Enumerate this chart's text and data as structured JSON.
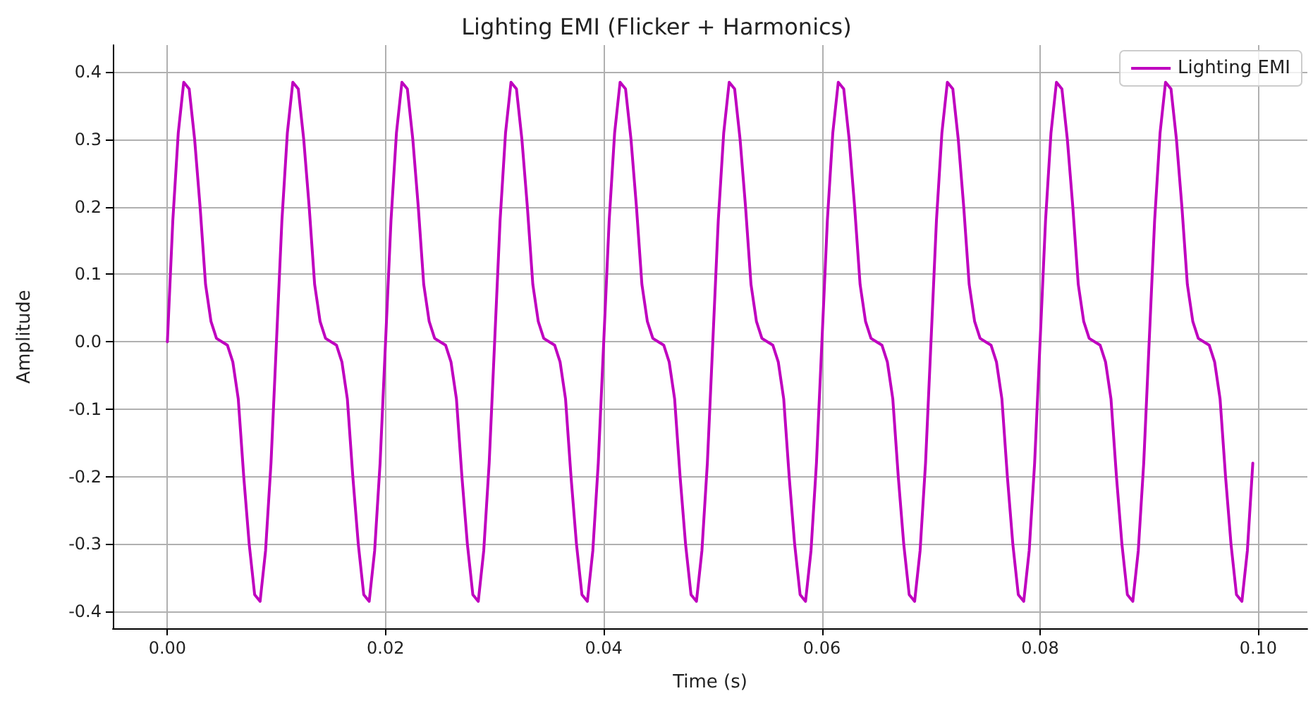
{
  "chart_data": {
    "type": "line",
    "title": "Lighting EMI (Flicker + Harmonics)",
    "xlabel": "Time (s)",
    "ylabel": "Amplitude",
    "x": [
      0,
      0.0005,
      0.001,
      0.0015,
      0.002,
      0.0025,
      0.003,
      0.0035,
      0.004,
      0.0045,
      0.005,
      0.0055,
      0.006,
      0.0065,
      0.007,
      0.0075,
      0.008,
      0.0085,
      0.009,
      0.0095,
      0.01,
      0.0105,
      0.011,
      0.0115,
      0.012,
      0.0125,
      0.013,
      0.0135,
      0.014,
      0.0145,
      0.015,
      0.0155,
      0.016,
      0.0165,
      0.017,
      0.0175,
      0.018,
      0.0185,
      0.019,
      0.0195,
      0.02,
      0.0205,
      0.021,
      0.0215,
      0.022,
      0.0225,
      0.023,
      0.0235,
      0.024,
      0.0245,
      0.025,
      0.0255,
      0.026,
      0.0265,
      0.027,
      0.0275,
      0.028,
      0.0285,
      0.029,
      0.0295,
      0.03,
      0.0305,
      0.031,
      0.0315,
      0.032,
      0.0325,
      0.033,
      0.0335,
      0.034,
      0.0345,
      0.035,
      0.0355,
      0.036,
      0.0365,
      0.037,
      0.0375,
      0.038,
      0.0385,
      0.039,
      0.0395,
      0.04,
      0.0405,
      0.041,
      0.0415,
      0.042,
      0.0425,
      0.043,
      0.0435,
      0.044,
      0.0445,
      0.045,
      0.0455,
      0.046,
      0.0465,
      0.047,
      0.0475,
      0.048,
      0.0485,
      0.049,
      0.0495,
      0.05,
      0.0505,
      0.051,
      0.0515,
      0.052,
      0.0525,
      0.053,
      0.0535,
      0.054,
      0.0545,
      0.055,
      0.0555,
      0.056,
      0.0565,
      0.057,
      0.0575,
      0.058,
      0.0585,
      0.059,
      0.0595,
      0.06,
      0.0605,
      0.061,
      0.0615,
      0.062,
      0.0625,
      0.063,
      0.0635,
      0.064,
      0.0645,
      0.065,
      0.0655,
      0.066,
      0.0665,
      0.067,
      0.0675,
      0.068,
      0.0685,
      0.069,
      0.0695,
      0.07,
      0.0705,
      0.071,
      0.0715,
      0.072,
      0.0725,
      0.073,
      0.0735,
      0.074,
      0.0745,
      0.075,
      0.0755,
      0.076,
      0.0765,
      0.077,
      0.0775,
      0.078,
      0.0785,
      0.079,
      0.0795,
      0.08,
      0.0805,
      0.081,
      0.0815,
      0.082,
      0.0825,
      0.083,
      0.0835,
      0.084,
      0.0845,
      0.085,
      0.0855,
      0.086,
      0.0865,
      0.087,
      0.0875,
      0.088,
      0.0885,
      0.089,
      0.0895,
      0.09,
      0.0905,
      0.091,
      0.0915,
      0.092,
      0.0925,
      0.093,
      0.0935,
      0.094,
      0.0945,
      0.095,
      0.0955,
      0.096,
      0.0965,
      0.097,
      0.0975,
      0.098,
      0.0985,
      0.099,
      0.0995
    ],
    "series": [
      {
        "name": "Lighting EMI",
        "color": "#bf00bf",
        "values": [
          0,
          0.18,
          0.31,
          0.385,
          0.375,
          0.3,
          0.2,
          0.085,
          0.03,
          0.005,
          0,
          -0.005,
          -0.03,
          -0.085,
          -0.2,
          -0.3,
          -0.375,
          -0.385,
          -0.31,
          -0.18,
          0,
          0.18,
          0.31,
          0.385,
          0.375,
          0.3,
          0.2,
          0.085,
          0.03,
          0.005,
          0,
          -0.005,
          -0.03,
          -0.085,
          -0.2,
          -0.3,
          -0.375,
          -0.385,
          -0.31,
          -0.18,
          0,
          0.18,
          0.31,
          0.385,
          0.375,
          0.3,
          0.2,
          0.085,
          0.03,
          0.005,
          0,
          -0.005,
          -0.03,
          -0.085,
          -0.2,
          -0.3,
          -0.375,
          -0.385,
          -0.31,
          -0.18,
          0,
          0.18,
          0.31,
          0.385,
          0.375,
          0.3,
          0.2,
          0.085,
          0.03,
          0.005,
          0,
          -0.005,
          -0.03,
          -0.085,
          -0.2,
          -0.3,
          -0.375,
          -0.385,
          -0.31,
          -0.18,
          0,
          0.18,
          0.31,
          0.385,
          0.375,
          0.3,
          0.2,
          0.085,
          0.03,
          0.005,
          0,
          -0.005,
          -0.03,
          -0.085,
          -0.2,
          -0.3,
          -0.375,
          -0.385,
          -0.31,
          -0.18,
          0,
          0.18,
          0.31,
          0.385,
          0.375,
          0.3,
          0.2,
          0.085,
          0.03,
          0.005,
          0,
          -0.005,
          -0.03,
          -0.085,
          -0.2,
          -0.3,
          -0.375,
          -0.385,
          -0.31,
          -0.18,
          0,
          0.18,
          0.31,
          0.385,
          0.375,
          0.3,
          0.2,
          0.085,
          0.03,
          0.005,
          0,
          -0.005,
          -0.03,
          -0.085,
          -0.2,
          -0.3,
          -0.375,
          -0.385,
          -0.31,
          -0.18,
          0,
          0.18,
          0.31,
          0.385,
          0.375,
          0.3,
          0.2,
          0.085,
          0.03,
          0.005,
          0,
          -0.005,
          -0.03,
          -0.085,
          -0.2,
          -0.3,
          -0.375,
          -0.385,
          -0.31,
          -0.18,
          0,
          0.18,
          0.31,
          0.385,
          0.375,
          0.3,
          0.2,
          0.085,
          0.03,
          0.005,
          0,
          -0.005,
          -0.03,
          -0.085,
          -0.2,
          -0.3,
          -0.375,
          -0.385,
          -0.31,
          -0.18,
          0,
          0.18,
          0.31,
          0.385,
          0.375,
          0.3,
          0.2,
          0.085,
          0.03,
          0.005,
          0,
          -0.005,
          -0.03,
          -0.085,
          -0.2,
          -0.3,
          -0.375,
          -0.385,
          -0.31,
          -0.18
        ]
      }
    ],
    "xlim": [
      -0.005,
      0.1045
    ],
    "xticks": [
      {
        "value": 0,
        "label": "0.00"
      },
      {
        "value": 0.02,
        "label": "0.02"
      },
      {
        "value": 0.04,
        "label": "0.04"
      },
      {
        "value": 0.06,
        "label": "0.06"
      },
      {
        "value": 0.08,
        "label": "0.08"
      },
      {
        "value": 0.1,
        "label": "0.10"
      }
    ],
    "ylim": [
      -0.425,
      0.44
    ],
    "yticks": [
      -0.4,
      -0.3,
      -0.2,
      -0.1,
      {
        "value": 0,
        "label": "0.0"
      },
      0.1,
      0.2,
      0.3,
      0.4
    ],
    "grid": true,
    "legend": "top right"
  }
}
